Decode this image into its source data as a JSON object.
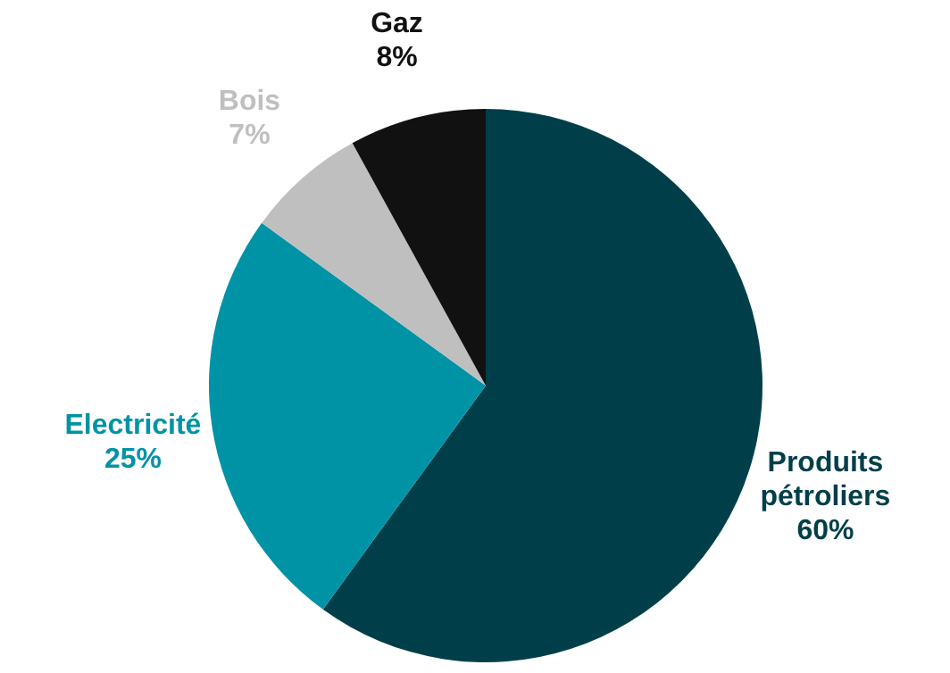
{
  "chart_data": {
    "type": "pie",
    "categories": [
      "Produits pétroliers",
      "Electricité",
      "Bois",
      "Gaz"
    ],
    "values": [
      60,
      25,
      7,
      8
    ],
    "colors": [
      "#003f4a",
      "#0093a6",
      "#bfbfbf",
      "#111111"
    ],
    "value_labels": [
      "60%",
      "25%",
      "7%",
      "8%"
    ]
  }
}
